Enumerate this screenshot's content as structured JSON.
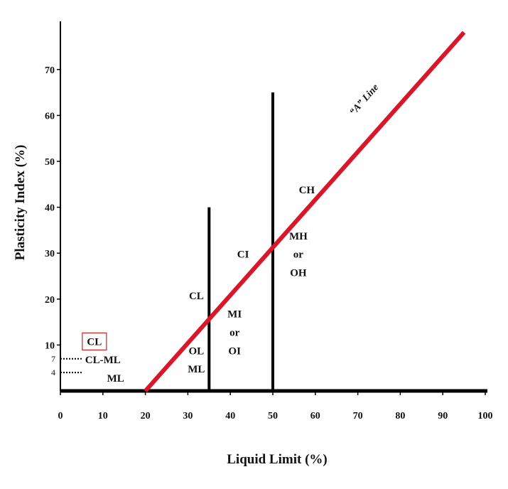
{
  "chart_data": {
    "type": "line",
    "title": "",
    "xlabel": "Liquid Limit (%)",
    "ylabel": "Plasticity Index (%)",
    "xlim": [
      0,
      100
    ],
    "ylim": [
      0,
      80
    ],
    "x_ticks": [
      0,
      10,
      20,
      30,
      40,
      50,
      60,
      70,
      80,
      90,
      100
    ],
    "y_ticks": [
      10,
      20,
      30,
      40,
      50,
      60,
      70
    ],
    "y_special_ticks": [
      4,
      7
    ],
    "series": [
      {
        "name": "“A” Line",
        "color": "#d9172b",
        "x": [
          20,
          95
        ],
        "y": [
          0,
          78.1
        ]
      }
    ],
    "vertical_lines": [
      {
        "x": 35,
        "y_top": 40,
        "color": "#000000"
      },
      {
        "x": 50,
        "y_top": 65,
        "color": "#000000"
      }
    ],
    "dotted_lines": [
      {
        "y": 7,
        "x_from": 0,
        "x_to": 5
      },
      {
        "y": 4,
        "x_from": 0,
        "x_to": 5
      }
    ],
    "regions": [
      {
        "label": "CL",
        "x": 8,
        "y": 10,
        "boxed": true,
        "box_color": "#cc2222"
      },
      {
        "label": "CL-ML",
        "x": 10,
        "y": 6
      },
      {
        "label": "ML",
        "x": 13,
        "y": 2
      },
      {
        "label": "CL",
        "x": 32,
        "y": 20
      },
      {
        "label": "OL",
        "x": 32,
        "y": 8
      },
      {
        "label": "ML",
        "x": 32,
        "y": 4
      },
      {
        "label": "MI",
        "x": 41,
        "y": 16
      },
      {
        "label": "or",
        "x": 41,
        "y": 12
      },
      {
        "label": "OI",
        "x": 41,
        "y": 8
      },
      {
        "label": "CI",
        "x": 43,
        "y": 29
      },
      {
        "label": "MH",
        "x": 56,
        "y": 33
      },
      {
        "label": "or",
        "x": 56,
        "y": 29
      },
      {
        "label": "OH",
        "x": 56,
        "y": 25
      },
      {
        "label": "CH",
        "x": 58,
        "y": 43
      }
    ],
    "annotation": {
      "text": "“A” Line",
      "x": 72,
      "y": 63
    },
    "grid": false,
    "legend": "none"
  }
}
